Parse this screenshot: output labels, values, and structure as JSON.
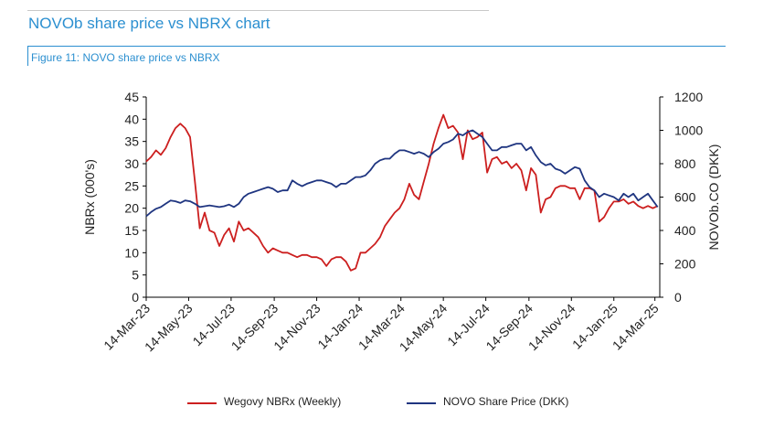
{
  "page": {
    "heading": "NOVOb share price vs NBRX chart",
    "figure_title": "Figure 11: NOVO share price vs NBRX"
  },
  "colors": {
    "accent": "#2b8fd0",
    "wegovy": "#cc1f1f",
    "novo": "#1f3580"
  },
  "chart_data": {
    "type": "line",
    "title": "",
    "x_type": "date",
    "x_range": [
      "2023-03-14",
      "2025-03-21"
    ],
    "x_ticks": [
      "14-Mar-23",
      "14-May-23",
      "14-Jul-23",
      "14-Sep-23",
      "14-Nov-23",
      "14-Jan-24",
      "14-Mar-24",
      "14-May-24",
      "14-Jul-24",
      "14-Sep-24",
      "14-Nov-24",
      "14-Jan-25",
      "14-Mar-25"
    ],
    "x_tick_dates": [
      "2023-03-14",
      "2023-05-14",
      "2023-07-14",
      "2023-09-14",
      "2023-11-14",
      "2024-01-14",
      "2024-03-14",
      "2024-05-14",
      "2024-07-14",
      "2024-09-14",
      "2024-11-14",
      "2025-01-14",
      "2025-03-14"
    ],
    "y_left": {
      "label": "NBRx (000's)",
      "min": 0,
      "max": 45,
      "ticks": [
        0,
        5,
        10,
        15,
        20,
        25,
        30,
        35,
        40,
        45
      ]
    },
    "y_right": {
      "label": "NOVOb.CO (DKK)",
      "min": 0,
      "max": 1200,
      "ticks": [
        0,
        200,
        400,
        600,
        800,
        1000,
        1200
      ]
    },
    "grid": false,
    "legend_position": "bottom",
    "series": [
      {
        "name": "Wegovy NBRx (Weekly)",
        "axis": "left",
        "color": "#cc1f1f",
        "points": [
          [
            "2023-03-14",
            30.5
          ],
          [
            "2023-03-21",
            31.5
          ],
          [
            "2023-03-28",
            33.0
          ],
          [
            "2023-04-04",
            32.0
          ],
          [
            "2023-04-11",
            33.5
          ],
          [
            "2023-04-18",
            36.0
          ],
          [
            "2023-04-25",
            38.0
          ],
          [
            "2023-05-02",
            39.0
          ],
          [
            "2023-05-09",
            38.0
          ],
          [
            "2023-05-16",
            36.0
          ],
          [
            "2023-05-23",
            26.0
          ],
          [
            "2023-05-30",
            15.5
          ],
          [
            "2023-06-06",
            19.0
          ],
          [
            "2023-06-13",
            15.0
          ],
          [
            "2023-06-20",
            14.5
          ],
          [
            "2023-06-27",
            11.5
          ],
          [
            "2023-07-04",
            14.0
          ],
          [
            "2023-07-11",
            15.5
          ],
          [
            "2023-07-18",
            12.5
          ],
          [
            "2023-07-25",
            17.0
          ],
          [
            "2023-08-01",
            15.0
          ],
          [
            "2023-08-08",
            15.5
          ],
          [
            "2023-08-15",
            14.5
          ],
          [
            "2023-08-22",
            13.5
          ],
          [
            "2023-08-29",
            11.5
          ],
          [
            "2023-09-05",
            10.0
          ],
          [
            "2023-09-12",
            11.0
          ],
          [
            "2023-09-19",
            10.5
          ],
          [
            "2023-09-26",
            10.0
          ],
          [
            "2023-10-03",
            10.0
          ],
          [
            "2023-10-10",
            9.5
          ],
          [
            "2023-10-17",
            9.0
          ],
          [
            "2023-10-24",
            9.5
          ],
          [
            "2023-10-31",
            9.5
          ],
          [
            "2023-11-07",
            9.0
          ],
          [
            "2023-11-14",
            9.0
          ],
          [
            "2023-11-21",
            8.5
          ],
          [
            "2023-11-28",
            7.0
          ],
          [
            "2023-12-05",
            8.5
          ],
          [
            "2023-12-12",
            9.0
          ],
          [
            "2023-12-19",
            9.0
          ],
          [
            "2023-12-26",
            8.0
          ],
          [
            "2024-01-02",
            6.0
          ],
          [
            "2024-01-09",
            6.5
          ],
          [
            "2024-01-16",
            10.0
          ],
          [
            "2024-01-23",
            10.0
          ],
          [
            "2024-01-30",
            11.0
          ],
          [
            "2024-02-06",
            12.0
          ],
          [
            "2024-02-13",
            13.5
          ],
          [
            "2024-02-20",
            16.0
          ],
          [
            "2024-02-27",
            17.5
          ],
          [
            "2024-03-05",
            19.0
          ],
          [
            "2024-03-12",
            20.0
          ],
          [
            "2024-03-19",
            22.0
          ],
          [
            "2024-03-26",
            25.5
          ],
          [
            "2024-04-02",
            23.0
          ],
          [
            "2024-04-09",
            22.0
          ],
          [
            "2024-04-16",
            26.0
          ],
          [
            "2024-04-23",
            30.0
          ],
          [
            "2024-04-30",
            34.5
          ],
          [
            "2024-05-07",
            38.0
          ],
          [
            "2024-05-14",
            41.0
          ],
          [
            "2024-05-21",
            38.0
          ],
          [
            "2024-05-28",
            38.5
          ],
          [
            "2024-06-04",
            37.0
          ],
          [
            "2024-06-11",
            31.0
          ],
          [
            "2024-06-18",
            37.5
          ],
          [
            "2024-06-25",
            35.5
          ],
          [
            "2024-07-02",
            36.0
          ],
          [
            "2024-07-09",
            37.0
          ],
          [
            "2024-07-16",
            28.0
          ],
          [
            "2024-07-23",
            31.0
          ],
          [
            "2024-07-30",
            31.5
          ],
          [
            "2024-08-06",
            30.0
          ],
          [
            "2024-08-13",
            30.5
          ],
          [
            "2024-08-20",
            29.0
          ],
          [
            "2024-08-27",
            30.0
          ],
          [
            "2024-09-03",
            28.5
          ],
          [
            "2024-09-10",
            24.0
          ],
          [
            "2024-09-17",
            29.0
          ],
          [
            "2024-09-24",
            27.5
          ],
          [
            "2024-10-01",
            19.0
          ],
          [
            "2024-10-08",
            22.0
          ],
          [
            "2024-10-15",
            22.5
          ],
          [
            "2024-10-22",
            24.5
          ],
          [
            "2024-10-29",
            25.0
          ],
          [
            "2024-11-05",
            25.0
          ],
          [
            "2024-11-12",
            24.5
          ],
          [
            "2024-11-19",
            24.5
          ],
          [
            "2024-11-26",
            22.0
          ],
          [
            "2024-12-03",
            24.5
          ],
          [
            "2024-12-10",
            24.5
          ],
          [
            "2024-12-17",
            24.0
          ],
          [
            "2024-12-24",
            17.0
          ],
          [
            "2024-12-31",
            18.0
          ],
          [
            "2025-01-07",
            20.0
          ],
          [
            "2025-01-14",
            21.5
          ],
          [
            "2025-01-21",
            21.5
          ],
          [
            "2025-01-28",
            22.0
          ],
          [
            "2025-02-04",
            21.0
          ],
          [
            "2025-02-11",
            21.5
          ],
          [
            "2025-02-18",
            20.5
          ],
          [
            "2025-02-25",
            20.0
          ],
          [
            "2025-03-04",
            20.5
          ],
          [
            "2025-03-11",
            20.0
          ],
          [
            "2025-03-18",
            20.5
          ]
        ]
      },
      {
        "name": "NOVO Share Price (DKK)",
        "axis": "right",
        "color": "#1f3580",
        "points": [
          [
            "2023-03-14",
            485
          ],
          [
            "2023-03-21",
            510
          ],
          [
            "2023-03-28",
            530
          ],
          [
            "2023-04-04",
            540
          ],
          [
            "2023-04-11",
            560
          ],
          [
            "2023-04-18",
            580
          ],
          [
            "2023-04-25",
            575
          ],
          [
            "2023-05-02",
            565
          ],
          [
            "2023-05-09",
            580
          ],
          [
            "2023-05-16",
            575
          ],
          [
            "2023-05-23",
            560
          ],
          [
            "2023-05-30",
            540
          ],
          [
            "2023-06-06",
            545
          ],
          [
            "2023-06-13",
            550
          ],
          [
            "2023-06-20",
            545
          ],
          [
            "2023-06-27",
            540
          ],
          [
            "2023-07-04",
            545
          ],
          [
            "2023-07-11",
            555
          ],
          [
            "2023-07-18",
            540
          ],
          [
            "2023-07-25",
            560
          ],
          [
            "2023-08-01",
            600
          ],
          [
            "2023-08-08",
            620
          ],
          [
            "2023-08-15",
            630
          ],
          [
            "2023-08-22",
            640
          ],
          [
            "2023-08-29",
            650
          ],
          [
            "2023-09-05",
            660
          ],
          [
            "2023-09-12",
            650
          ],
          [
            "2023-09-19",
            630
          ],
          [
            "2023-09-26",
            640
          ],
          [
            "2023-10-03",
            640
          ],
          [
            "2023-10-10",
            700
          ],
          [
            "2023-10-17",
            680
          ],
          [
            "2023-10-24",
            665
          ],
          [
            "2023-10-31",
            680
          ],
          [
            "2023-11-07",
            690
          ],
          [
            "2023-11-14",
            700
          ],
          [
            "2023-11-21",
            700
          ],
          [
            "2023-11-28",
            690
          ],
          [
            "2023-12-05",
            680
          ],
          [
            "2023-12-12",
            660
          ],
          [
            "2023-12-19",
            680
          ],
          [
            "2023-12-26",
            680
          ],
          [
            "2024-01-02",
            700
          ],
          [
            "2024-01-09",
            720
          ],
          [
            "2024-01-16",
            720
          ],
          [
            "2024-01-23",
            730
          ],
          [
            "2024-01-30",
            760
          ],
          [
            "2024-02-06",
            800
          ],
          [
            "2024-02-13",
            820
          ],
          [
            "2024-02-20",
            830
          ],
          [
            "2024-02-27",
            830
          ],
          [
            "2024-03-05",
            860
          ],
          [
            "2024-03-12",
            880
          ],
          [
            "2024-03-19",
            880
          ],
          [
            "2024-03-26",
            870
          ],
          [
            "2024-04-02",
            860
          ],
          [
            "2024-04-09",
            870
          ],
          [
            "2024-04-16",
            860
          ],
          [
            "2024-04-23",
            840
          ],
          [
            "2024-04-30",
            870
          ],
          [
            "2024-05-07",
            890
          ],
          [
            "2024-05-14",
            920
          ],
          [
            "2024-05-21",
            930
          ],
          [
            "2024-05-28",
            945
          ],
          [
            "2024-06-04",
            980
          ],
          [
            "2024-06-11",
            970
          ],
          [
            "2024-06-18",
            990
          ],
          [
            "2024-06-25",
            1000
          ],
          [
            "2024-07-02",
            980
          ],
          [
            "2024-07-09",
            960
          ],
          [
            "2024-07-16",
            920
          ],
          [
            "2024-07-23",
            880
          ],
          [
            "2024-07-30",
            880
          ],
          [
            "2024-08-06",
            900
          ],
          [
            "2024-08-13",
            900
          ],
          [
            "2024-08-20",
            910
          ],
          [
            "2024-08-27",
            920
          ],
          [
            "2024-09-03",
            920
          ],
          [
            "2024-09-10",
            880
          ],
          [
            "2024-09-17",
            900
          ],
          [
            "2024-09-24",
            850
          ],
          [
            "2024-10-01",
            810
          ],
          [
            "2024-10-08",
            790
          ],
          [
            "2024-10-15",
            800
          ],
          [
            "2024-10-22",
            770
          ],
          [
            "2024-10-29",
            760
          ],
          [
            "2024-11-05",
            740
          ],
          [
            "2024-11-12",
            760
          ],
          [
            "2024-11-19",
            780
          ],
          [
            "2024-11-26",
            770
          ],
          [
            "2024-12-03",
            700
          ],
          [
            "2024-12-10",
            660
          ],
          [
            "2024-12-17",
            640
          ],
          [
            "2024-12-24",
            600
          ],
          [
            "2024-12-31",
            620
          ],
          [
            "2025-01-07",
            610
          ],
          [
            "2025-01-14",
            600
          ],
          [
            "2025-01-21",
            580
          ],
          [
            "2025-01-28",
            620
          ],
          [
            "2025-02-04",
            600
          ],
          [
            "2025-02-11",
            620
          ],
          [
            "2025-02-18",
            580
          ],
          [
            "2025-02-25",
            600
          ],
          [
            "2025-03-04",
            620
          ],
          [
            "2025-03-11",
            580
          ],
          [
            "2025-03-18",
            540
          ]
        ]
      }
    ]
  }
}
